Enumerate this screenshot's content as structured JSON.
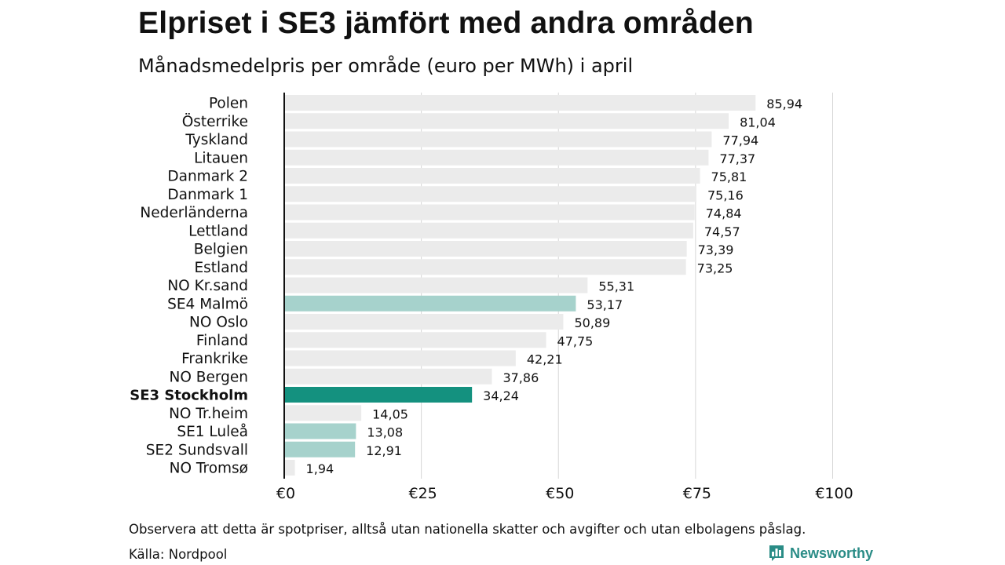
{
  "chart_data": {
    "type": "bar",
    "orientation": "horizontal",
    "title": "Elpriset i SE3 jämfört med andra områden",
    "subtitle": "Månadsmedelpris per område (euro per MWh) i april",
    "categories": [
      "Polen",
      "Österrike",
      "Tyskland",
      "Litauen",
      "Danmark 2",
      "Danmark 1",
      "Nederländerna",
      "Lettland",
      "Belgien",
      "Estland",
      "NO Kr.sand",
      "SE4 Malmö",
      "NO Oslo",
      "Finland",
      "Frankrike",
      "NO Bergen",
      "SE3 Stockholm",
      "NO Tr.heim",
      "SE1 Luleå",
      "SE2 Sundsvall",
      "NO Tromsø"
    ],
    "values": [
      85.94,
      81.04,
      77.94,
      77.37,
      75.81,
      75.16,
      74.84,
      74.57,
      73.39,
      73.25,
      55.31,
      53.17,
      50.89,
      47.75,
      42.21,
      37.86,
      34.24,
      14.05,
      13.08,
      12.91,
      1.94
    ],
    "value_labels": [
      "85,94",
      "81,04",
      "77,94",
      "77,37",
      "75,81",
      "75,16",
      "74,84",
      "74,57",
      "73,39",
      "73,25",
      "55,31",
      "53,17",
      "50,89",
      "47,75",
      "42,21",
      "37,86",
      "34,24",
      "14,05",
      "13,08",
      "12,91",
      "1,94"
    ],
    "groups": [
      "other",
      "other",
      "other",
      "other",
      "other",
      "other",
      "other",
      "other",
      "other",
      "other",
      "other",
      "swedish",
      "other",
      "other",
      "other",
      "other",
      "highlight",
      "other",
      "swedish",
      "swedish",
      "other"
    ],
    "bold_categories": [
      "SE3 Stockholm"
    ],
    "xlim": [
      0,
      100
    ],
    "xticks": [
      0,
      25,
      50,
      75,
      100
    ],
    "xtick_labels": [
      "€0",
      "€25",
      "€50",
      "€75",
      "€100"
    ],
    "grid": true,
    "colors": {
      "other": "#ebebeb",
      "swedish": "#a6d2cc",
      "highlight": "#14917f",
      "gridline": "#d6d6d6",
      "axis": "#111111"
    }
  },
  "footer": {
    "note": "Observera att detta är spotpriser, alltså utan nationella skatter och avgifter och utan elbolagens påslag.",
    "source": "Källa: Nordpool",
    "brand": "Newsworthy",
    "brand_icon": "newsworthy-logo-icon",
    "brand_color": "#2a8c86"
  }
}
